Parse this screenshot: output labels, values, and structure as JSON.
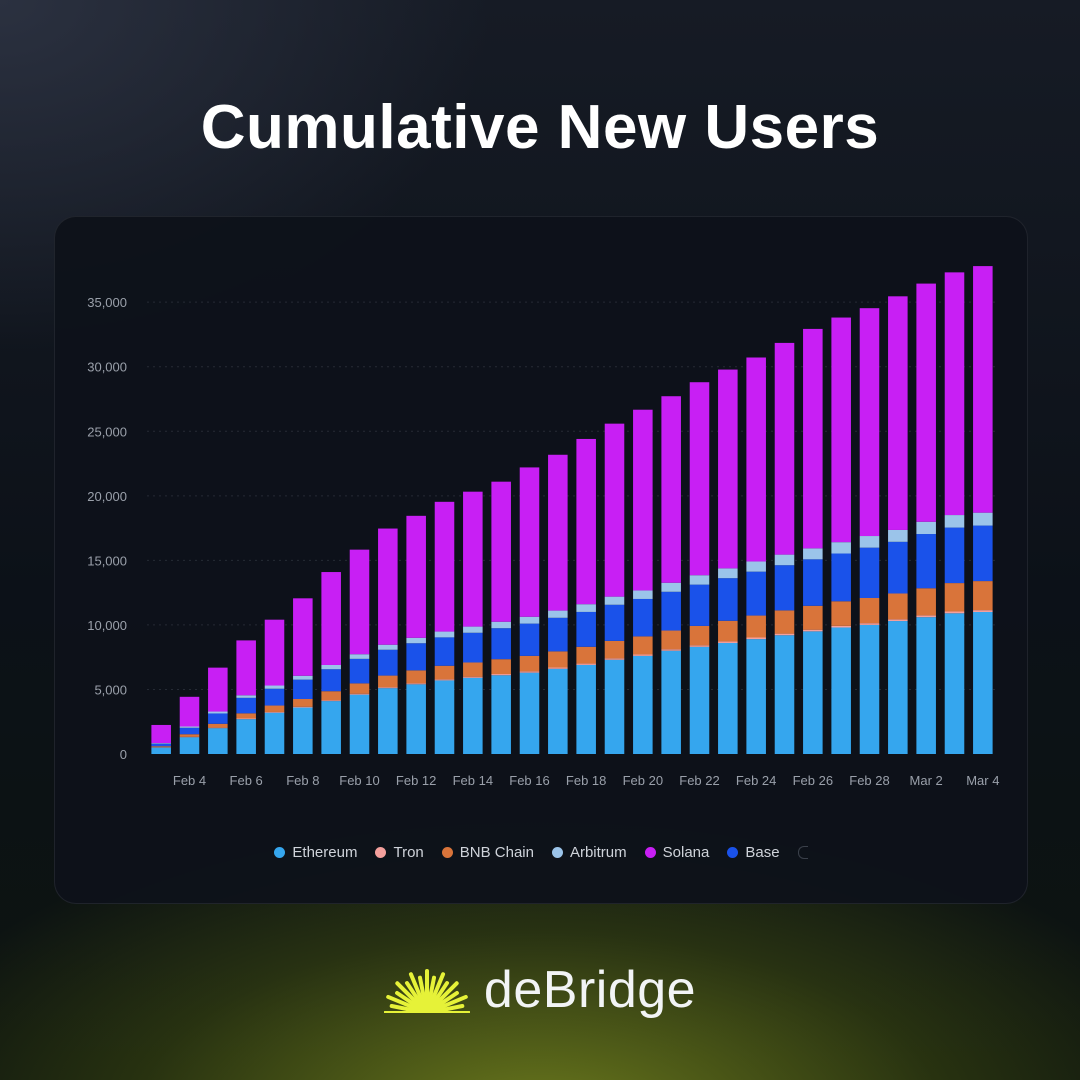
{
  "title": "Cumulative New Users",
  "brand": {
    "name": "deBridge",
    "logo_color": "#e6f238"
  },
  "colors": {
    "Ethereum": "#35a6ee",
    "Tron": "#f4a09d",
    "BNB Chain": "#d9743a",
    "Arbitrum": "#9bc4ea",
    "Solana": "#c81ff4",
    "Base": "#1a52ea"
  },
  "legend": [
    "Ethereum",
    "Tron",
    "BNB Chain",
    "Arbitrum",
    "Solana",
    "Base"
  ],
  "chart_data": {
    "type": "bar",
    "stacked": true,
    "x": [
      "Feb 3",
      "Feb 4",
      "Feb 5",
      "Feb 6",
      "Feb 7",
      "Feb 8",
      "Feb 9",
      "Feb 10",
      "Feb 11",
      "Feb 12",
      "Feb 13",
      "Feb 14",
      "Feb 15",
      "Feb 16",
      "Feb 17",
      "Feb 18",
      "Feb 19",
      "Feb 20",
      "Feb 21",
      "Feb 22",
      "Feb 23",
      "Feb 24",
      "Feb 25",
      "Feb 26",
      "Feb 27",
      "Feb 28",
      "Mar 1",
      "Mar 2",
      "Mar 3",
      "Mar 4"
    ],
    "x_tick_labels": [
      "Feb 4",
      "Feb 6",
      "Feb 8",
      "Feb 10",
      "Feb 12",
      "Feb 14",
      "Feb 16",
      "Feb 18",
      "Feb 20",
      "Feb 22",
      "Feb 24",
      "Feb 26",
      "Feb 28",
      "Mar 2",
      "Mar 4"
    ],
    "ylim": [
      0,
      38500
    ],
    "y_ticks": [
      0,
      5000,
      10000,
      15000,
      20000,
      25000,
      30000,
      35000
    ],
    "y_tick_labels": [
      "0",
      "5,000",
      "10,000",
      "15,000",
      "20,000",
      "25,000",
      "30,000",
      "35,000"
    ],
    "series": [
      {
        "name": "Ethereum",
        "values": [
          500,
          1300,
          2000,
          2700,
          3200,
          3600,
          4100,
          4600,
          5100,
          5400,
          5700,
          5900,
          6100,
          6300,
          6600,
          6900,
          7300,
          7600,
          8000,
          8300,
          8600,
          8900,
          9200,
          9500,
          9800,
          10000,
          10300,
          10600,
          10900,
          11000
        ]
      },
      {
        "name": "Tron",
        "values": [
          20,
          30,
          40,
          50,
          55,
          60,
          65,
          70,
          75,
          80,
          85,
          90,
          95,
          100,
          100,
          105,
          110,
          110,
          115,
          120,
          120,
          125,
          125,
          130,
          130,
          135,
          135,
          140,
          140,
          145
        ]
      },
      {
        "name": "BNB Chain",
        "values": [
          80,
          200,
          300,
          400,
          500,
          600,
          700,
          800,
          900,
          1000,
          1050,
          1100,
          1150,
          1200,
          1250,
          1300,
          1350,
          1400,
          1450,
          1500,
          1600,
          1700,
          1800,
          1850,
          1900,
          1950,
          2000,
          2100,
          2200,
          2250
        ]
      },
      {
        "name": "Base",
        "values": [
          200,
          500,
          800,
          1200,
          1300,
          1500,
          1700,
          1900,
          2000,
          2100,
          2200,
          2300,
          2400,
          2500,
          2600,
          2700,
          2800,
          2900,
          3000,
          3200,
          3300,
          3400,
          3500,
          3600,
          3700,
          3900,
          4000,
          4200,
          4300,
          4300
        ]
      },
      {
        "name": "Arbitrum",
        "values": [
          50,
          100,
          150,
          200,
          250,
          300,
          330,
          360,
          390,
          420,
          450,
          480,
          500,
          530,
          560,
          600,
          630,
          660,
          700,
          730,
          760,
          790,
          820,
          850,
          880,
          900,
          920,
          950,
          970,
          1000
        ]
      },
      {
        "name": "Solana",
        "values": [
          1400,
          2300,
          3400,
          4250,
          5100,
          6000,
          7200,
          8100,
          9000,
          9450,
          10050,
          10450,
          10850,
          11570,
          12070,
          12800,
          13400,
          14000,
          14450,
          14950,
          15400,
          15800,
          16400,
          17000,
          17400,
          17650,
          18100,
          18450,
          18800,
          19100
        ]
      }
    ]
  }
}
